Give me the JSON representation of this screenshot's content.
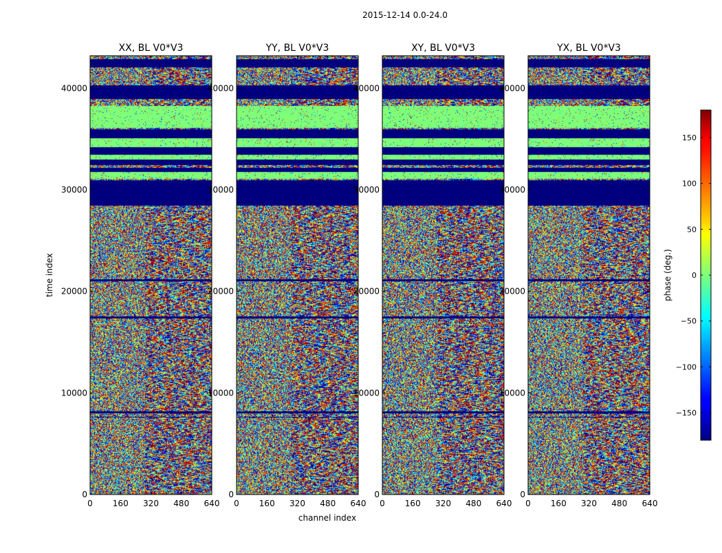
{
  "chart_data": {
    "type": "heatmap",
    "suptitle": "2015-12-14 0.0-24.0",
    "xlabel": "channel index",
    "ylabel": "time index",
    "xlim": [
      0,
      640
    ],
    "ylim": [
      0,
      43200
    ],
    "xticks": [
      0,
      160,
      320,
      480,
      640
    ],
    "yticks": [
      0,
      10000,
      20000,
      30000,
      40000
    ],
    "panels": [
      {
        "title": "XX, BL V0*V3",
        "key": "XX"
      },
      {
        "title": "YY, BL V0*V3",
        "key": "YY"
      },
      {
        "title": "XY, BL V0*V3",
        "key": "XY"
      },
      {
        "title": "YX, BL V0*V3",
        "key": "YX"
      }
    ],
    "colorbar": {
      "label": "phase (deg.)",
      "range": [
        -180,
        180
      ],
      "ticks": [
        -150,
        -100,
        -50,
        0,
        50,
        100,
        150
      ],
      "tick_labels": [
        "−150",
        "−100",
        "−50",
        "0",
        "50",
        "100",
        "150"
      ],
      "colormap": "jet"
    },
    "flagged_time_ranges": [
      [
        42100,
        42900
      ],
      [
        39000,
        40300
      ],
      [
        35100,
        36000
      ],
      [
        33500,
        34200
      ],
      [
        32500,
        33000
      ],
      [
        31800,
        32200
      ],
      [
        28500,
        31000
      ],
      [
        21000,
        21200
      ],
      [
        17400,
        17600
      ],
      [
        8000,
        8200
      ],
      [
        7600,
        7700
      ]
    ],
    "mostly_zero_phase_ranges": [
      [
        36100,
        38300
      ],
      [
        34200,
        35100
      ],
      [
        33000,
        33500
      ],
      [
        31100,
        31800
      ]
    ]
  },
  "colors": {
    "flagged": "#00007f",
    "zero_phase": "#7dff7a",
    "axes": "#000000"
  }
}
